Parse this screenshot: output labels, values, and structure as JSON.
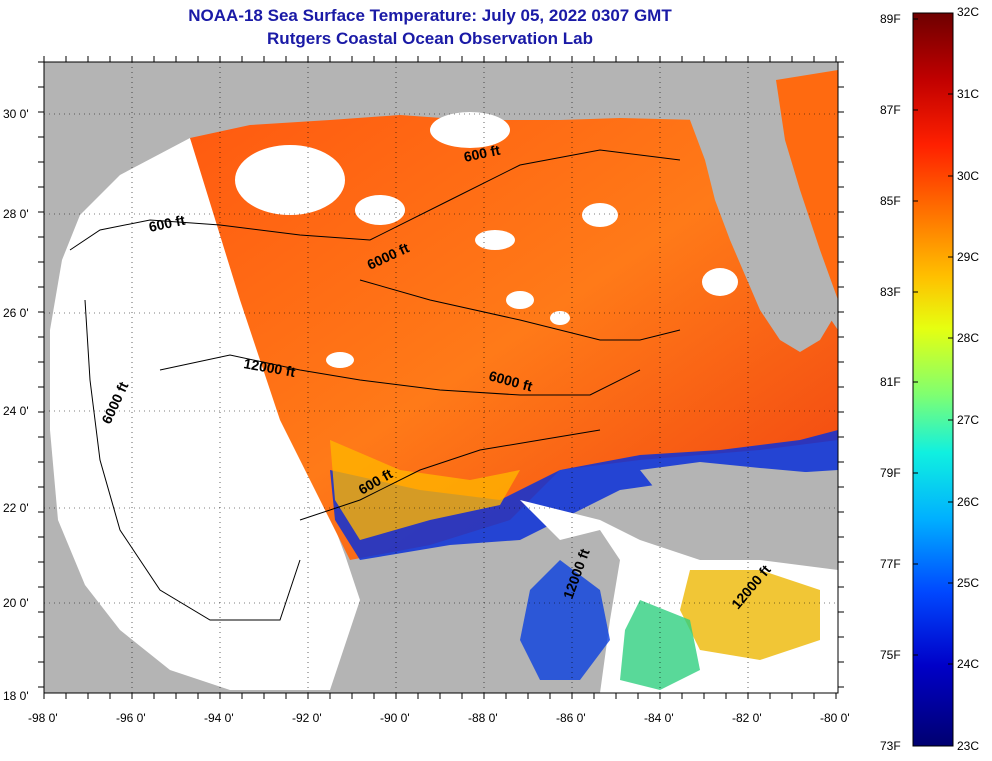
{
  "title": "NOAA-18 Sea Surface Temperature:  July 05, 2022 0307 GMT",
  "subtitle": "Rutgers Coastal Ocean Observation Lab",
  "latitude_labels": [
    "30 0'",
    "28 0'",
    "26 0'",
    "24 0'",
    "22 0'",
    "20 0'",
    "18 0'"
  ],
  "longitude_labels": [
    "-98 0'",
    "-96 0'",
    "-94 0'",
    "-92 0'",
    "-90 0'",
    "-88 0'",
    "-86 0'",
    "-84 0'",
    "-82 0'",
    "-80 0'"
  ],
  "contour_labels": [
    "600 ft",
    "600 ft",
    "6000 ft",
    "12000 ft",
    "6000 ft",
    "6000 ft",
    "600 ft",
    "12000 ft",
    "12000 ft"
  ],
  "colorbar": {
    "celsius_labels": [
      "32C",
      "31C",
      "30C",
      "29C",
      "28C",
      "27C",
      "26C",
      "25C",
      "24C",
      "23C"
    ],
    "fahrenheit_labels": [
      "89F",
      "87F",
      "85F",
      "83F",
      "81F",
      "79F",
      "77F",
      "75F",
      "73F"
    ],
    "colors": [
      "#7a0000",
      "#c20000",
      "#ff2a00",
      "#ff7a00",
      "#ffc800",
      "#e8ff10",
      "#8cff6e",
      "#18f0d8",
      "#00b0ff",
      "#0050ff",
      "#0000c8",
      "#00007a"
    ]
  },
  "colors": {
    "land": "#b4b4b4",
    "cloud": "#ffffff",
    "warm_water": "#ff6a10",
    "cool_water": "#0a2ad0",
    "title_text": "#1a1aa6"
  }
}
